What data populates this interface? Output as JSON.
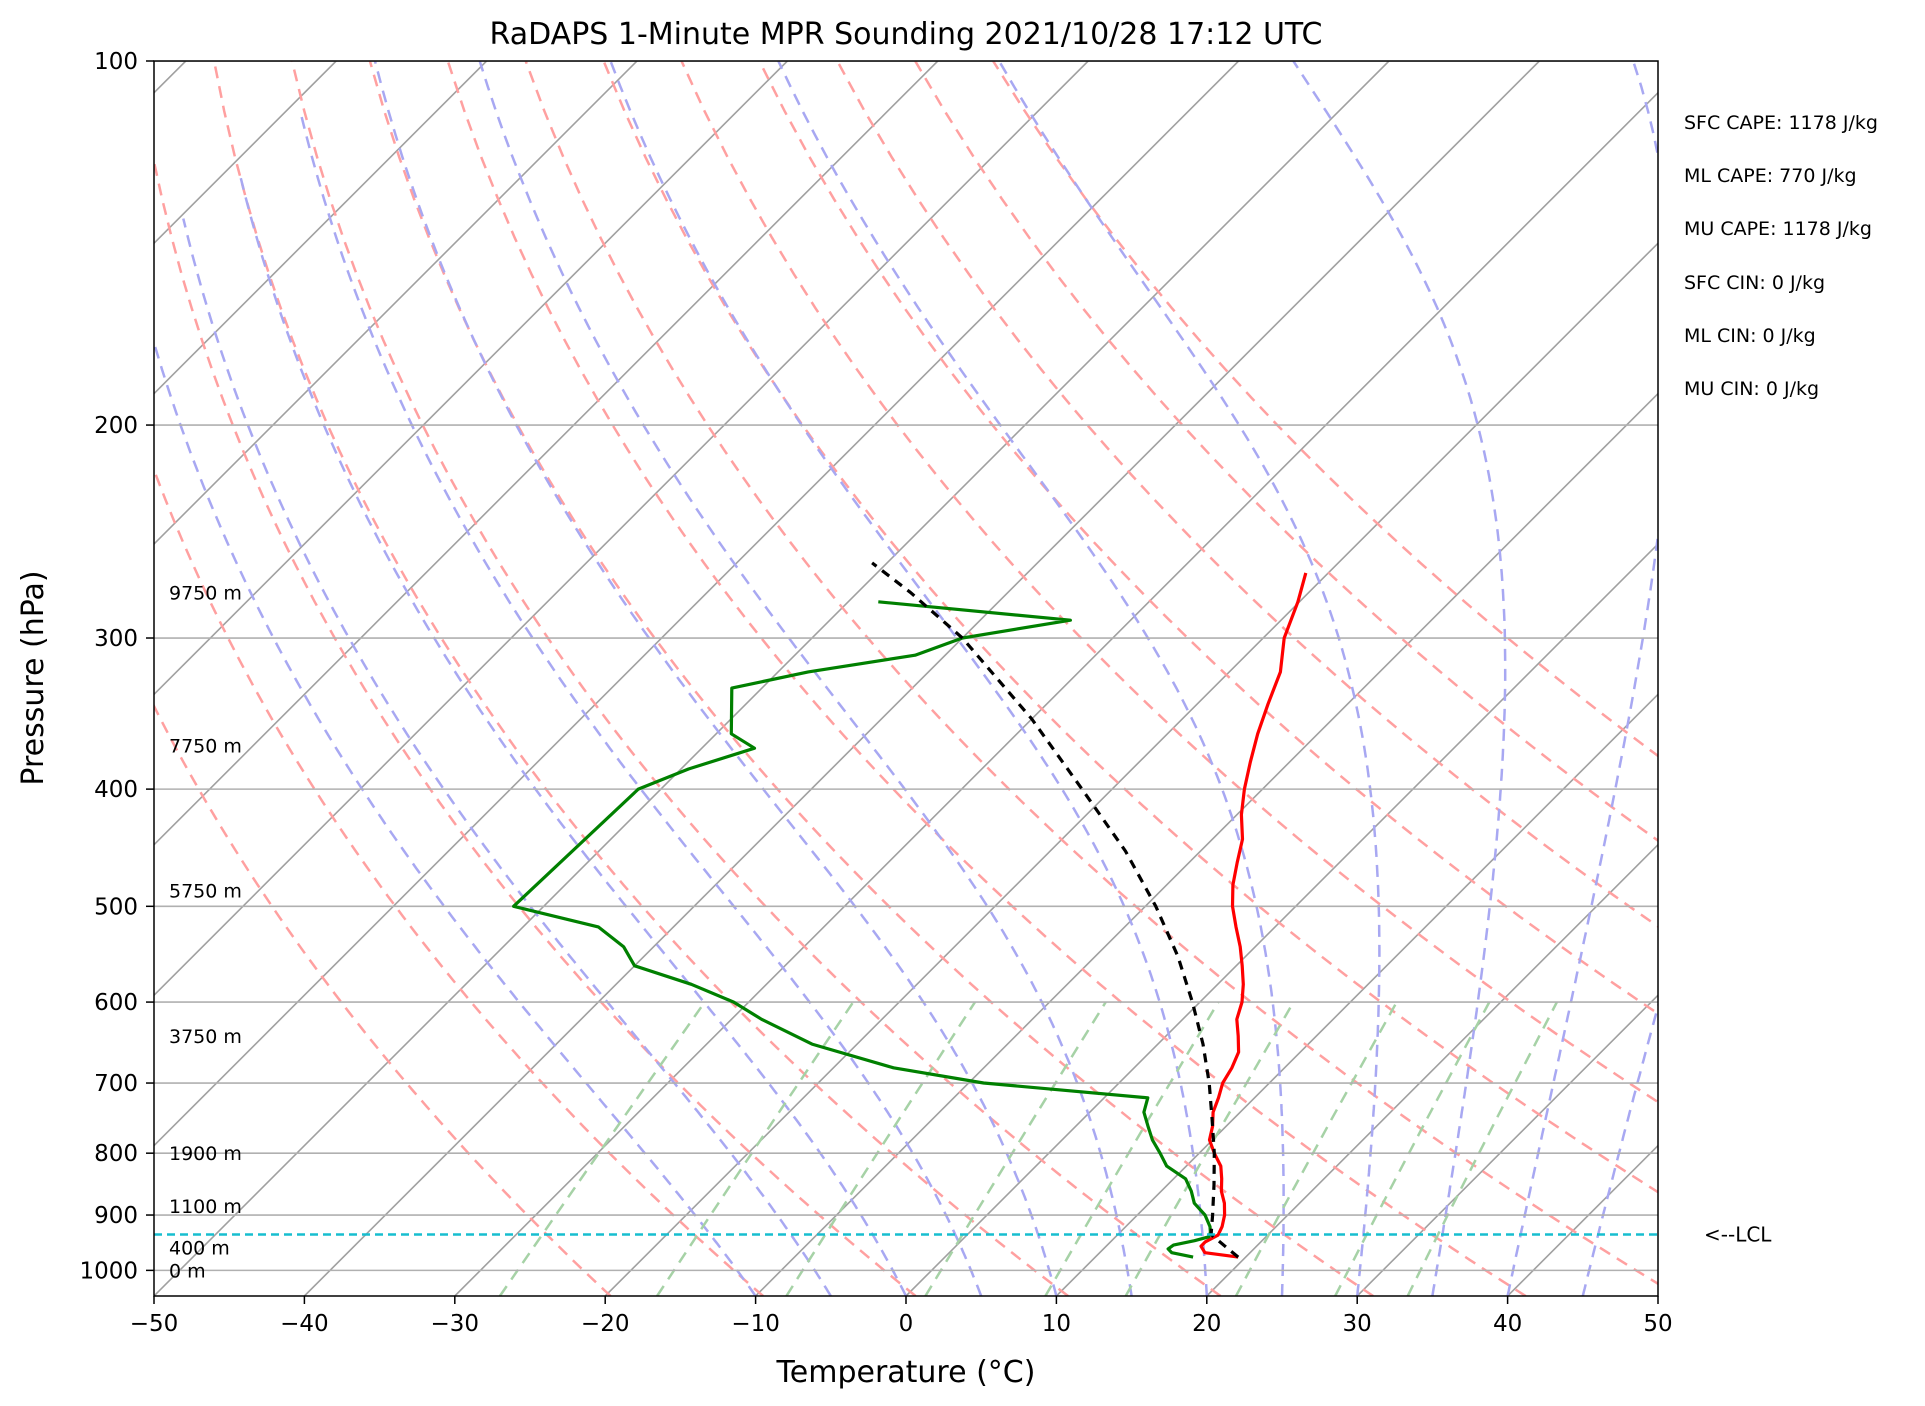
{
  "chart_data": {
    "type": "line",
    "subtype": "skew-T log-P sounding",
    "title": "RaDAPS 1-Minute MPR Sounding 2021/10/28 17:12 UTC",
    "xlabel": "Temperature (°C)",
    "ylabel": "Pressure (hPa)",
    "xlim": [
      -50,
      50
    ],
    "ylim": [
      1050,
      100
    ],
    "y_scale": "log",
    "x_ticks": [
      -50,
      -40,
      -30,
      -20,
      -10,
      0,
      10,
      20,
      30,
      40,
      50
    ],
    "x_tick_labels": [
      "−50",
      "−40",
      "−30",
      "−20",
      "−10",
      "0",
      "10",
      "20",
      "30",
      "40",
      "50"
    ],
    "y_ticks": [
      100,
      200,
      300,
      400,
      500,
      600,
      700,
      800,
      900,
      1000
    ],
    "y_tick_labels": [
      "100",
      "200",
      "300",
      "400",
      "500",
      "600",
      "700",
      "800",
      "900",
      "1000"
    ],
    "skew_isotherms_c": [
      -130,
      -120,
      -110,
      -100,
      -90,
      -80,
      -70,
      -60,
      -50,
      -40,
      -30,
      -20,
      -10,
      0,
      10,
      20,
      30,
      40,
      50
    ],
    "dry_adiabats_k": [
      250,
      260,
      270,
      280,
      290,
      300,
      310,
      320,
      330,
      340,
      350,
      360,
      370,
      380
    ],
    "moist_adiabats_c": [
      -10,
      -5,
      0,
      5,
      10,
      15,
      20,
      25,
      30,
      35,
      40,
      45
    ],
    "mixing_ratio_gkg": [
      0.4,
      1,
      2,
      4,
      7,
      10,
      16,
      24,
      32
    ],
    "grid": true,
    "series": [
      {
        "name": "",
        "role": "temperature",
        "color": "#ff0000",
        "points": [
          [
            975,
            19.5
          ],
          [
            967,
            17.0
          ],
          [
            955,
            16.3
          ],
          [
            947,
            16.3
          ],
          [
            935,
            16.7
          ],
          [
            920,
            16.4
          ],
          [
            900,
            15.8
          ],
          [
            880,
            15.0
          ],
          [
            860,
            14.0
          ],
          [
            840,
            13.2
          ],
          [
            820,
            12.3
          ],
          [
            800,
            11.0
          ],
          [
            780,
            9.8
          ],
          [
            760,
            9.1
          ],
          [
            740,
            8.2
          ],
          [
            720,
            7.6
          ],
          [
            700,
            6.9
          ],
          [
            680,
            6.5
          ],
          [
            660,
            5.9
          ],
          [
            640,
            4.8
          ],
          [
            620,
            3.6
          ],
          [
            600,
            2.8
          ],
          [
            580,
            1.7
          ],
          [
            560,
            0.4
          ],
          [
            540,
            -1.0
          ],
          [
            520,
            -2.6
          ],
          [
            500,
            -4.2
          ],
          [
            480,
            -5.6
          ],
          [
            460,
            -6.8
          ],
          [
            440,
            -8.0
          ],
          [
            420,
            -9.7
          ],
          [
            400,
            -11.2
          ],
          [
            380,
            -12.6
          ],
          [
            360,
            -14.0
          ],
          [
            340,
            -15.3
          ],
          [
            320,
            -16.6
          ],
          [
            300,
            -18.6
          ],
          [
            280,
            -20.1
          ],
          [
            265,
            -21.5
          ]
        ]
      },
      {
        "name": "",
        "role": "dewpoint",
        "color": "#008000",
        "points": [
          [
            975,
            16.5
          ],
          [
            967,
            14.8
          ],
          [
            960,
            14.3
          ],
          [
            953,
            14.4
          ],
          [
            945,
            15.5
          ],
          [
            938,
            16.2
          ],
          [
            930,
            16.0
          ],
          [
            920,
            15.6
          ],
          [
            900,
            14.5
          ],
          [
            880,
            13.0
          ],
          [
            860,
            12.0
          ],
          [
            840,
            10.8
          ],
          [
            820,
            8.7
          ],
          [
            800,
            7.4
          ],
          [
            780,
            6.0
          ],
          [
            760,
            4.8
          ],
          [
            740,
            3.6
          ],
          [
            720,
            2.9
          ],
          [
            700,
            -9.0
          ],
          [
            680,
            -16.0
          ],
          [
            650,
            -23.0
          ],
          [
            620,
            -28.0
          ],
          [
            600,
            -31.0
          ],
          [
            580,
            -35.0
          ],
          [
            560,
            -40.0
          ],
          [
            540,
            -42.0
          ],
          [
            520,
            -45.0
          ],
          [
            500,
            -52.0
          ],
          [
            400,
            -51.5
          ],
          [
            385,
            -49.5
          ],
          [
            370,
            -46.5
          ],
          [
            360,
            -49.0
          ],
          [
            330,
            -52.0
          ],
          [
            320,
            -48.0
          ],
          [
            310,
            -42.0
          ],
          [
            300,
            -40.0
          ],
          [
            290,
            -34.0
          ],
          [
            280,
            -48.0
          ]
        ]
      },
      {
        "name": "",
        "role": "parcel profile",
        "color": "#000000",
        "dashed": true,
        "points": [
          [
            975,
            19.5
          ],
          [
            955,
            17.9
          ],
          [
            934,
            16.2
          ],
          [
            900,
            15.0
          ],
          [
            850,
            13.1
          ],
          [
            800,
            11.0
          ],
          [
            750,
            8.6
          ],
          [
            700,
            6.0
          ],
          [
            650,
            3.0
          ],
          [
            600,
            -0.5
          ],
          [
            550,
            -4.5
          ],
          [
            500,
            -9.3
          ],
          [
            450,
            -15.0
          ],
          [
            400,
            -22.0
          ],
          [
            350,
            -30.0
          ],
          [
            300,
            -40.0
          ],
          [
            275,
            -46.5
          ],
          [
            260,
            -51.0
          ]
        ]
      }
    ],
    "lcl": {
      "pressure": 934,
      "label": "<--LCL",
      "color": "#17becf"
    },
    "height_labels": [
      {
        "pressure": 1000,
        "label": "0 m"
      },
      {
        "pressure": 957,
        "label": "400 m"
      },
      {
        "pressure": 885,
        "label": "1100 m"
      },
      {
        "pressure": 800,
        "label": "1900 m"
      },
      {
        "pressure": 640,
        "label": "3750 m"
      },
      {
        "pressure": 485,
        "label": "5750 m"
      },
      {
        "pressure": 368,
        "label": "7750 m"
      },
      {
        "pressure": 275,
        "label": "9750 m"
      }
    ],
    "annotations": [
      "SFC CAPE: 1178 J/kg",
      "ML CAPE: 770 J/kg",
      "MU CAPE: 1178 J/kg",
      "SFC CIN: 0 J/kg",
      "ML CIN: 0 J/kg",
      "MU CIN: 0 J/kg"
    ],
    "colors": {
      "isotherm": "#a0a0a0",
      "dry_adiabat": "#ffa0a0",
      "moist_adiabat": "#a8a8f2",
      "mixing_ratio": "#a6d2a6"
    }
  }
}
